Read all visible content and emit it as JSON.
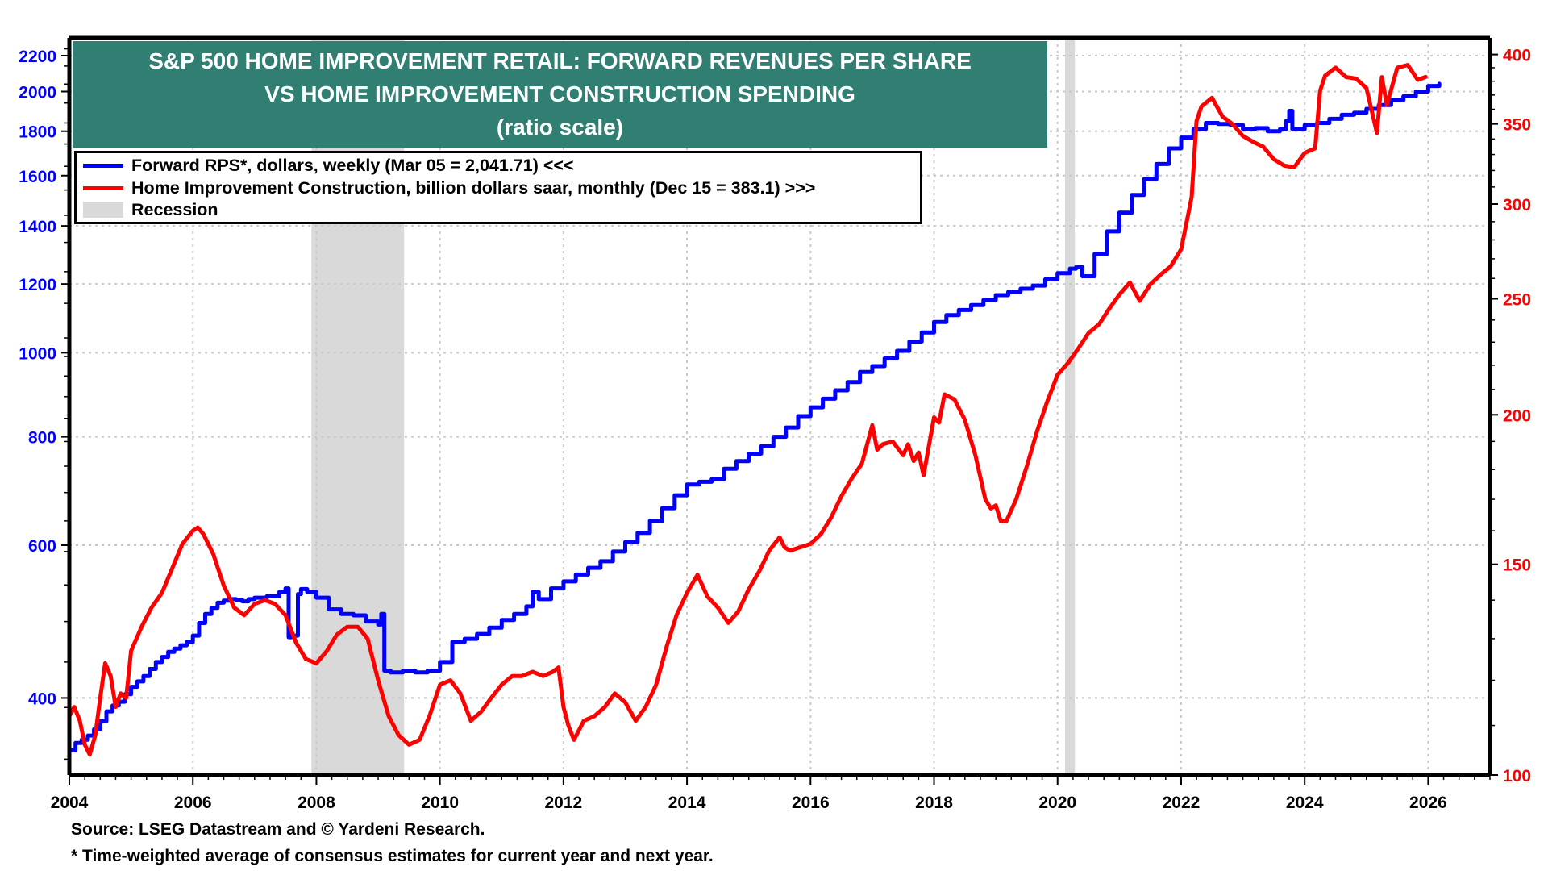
{
  "chart_data": {
    "type": "line",
    "title": [
      "S&P 500 HOME IMPROVEMENT RETAIL: FORWARD REVENUES PER SHARE",
      "VS HOME IMPROVEMENT CONSTRUCTION SPENDING",
      "(ratio scale)"
    ],
    "xlabel": "",
    "x_range": [
      2004,
      2027
    ],
    "x_ticks": [
      2004,
      2006,
      2008,
      2010,
      2012,
      2014,
      2016,
      2018,
      2020,
      2022,
      2024,
      2026
    ],
    "y_left": {
      "label": "",
      "scale": "log",
      "range": [
        326,
        2306
      ],
      "ticks": [
        400,
        600,
        800,
        1000,
        1200,
        1400,
        1600,
        1800,
        2000,
        2200
      ],
      "color": "#0000ff"
    },
    "y_right": {
      "label": "",
      "scale": "log",
      "range": [
        100,
        413
      ],
      "ticks": [
        100,
        150,
        200,
        250,
        300,
        350,
        400
      ],
      "color": "#ff0000"
    },
    "grid": true,
    "legend_placement": "top-left",
    "recessions": [
      [
        2007.92,
        2009.42
      ],
      [
        2020.12,
        2020.28
      ]
    ],
    "series": [
      {
        "name": "Forward RPS*, dollars, weekly (Mar 05 = 2,041.71) <<<",
        "axis": "left",
        "color": "#0000ff",
        "x": [
          2004.0,
          2004.1,
          2004.2,
          2004.3,
          2004.4,
          2004.5,
          2004.6,
          2004.7,
          2004.8,
          2004.9,
          2005.0,
          2005.1,
          2005.2,
          2005.3,
          2005.4,
          2005.5,
          2005.6,
          2005.7,
          2005.8,
          2005.9,
          2006.0,
          2006.1,
          2006.2,
          2006.3,
          2006.4,
          2006.5,
          2006.6,
          2006.7,
          2006.8,
          2006.9,
          2007.0,
          2007.2,
          2007.4,
          2007.5,
          2007.55,
          2007.6,
          2007.7,
          2007.75,
          2007.85,
          2008.0,
          2008.2,
          2008.4,
          2008.6,
          2008.8,
          2009.0,
          2009.05,
          2009.1,
          2009.2,
          2009.4,
          2009.6,
          2009.8,
          2010.0,
          2010.2,
          2010.4,
          2010.6,
          2010.8,
          2011.0,
          2011.2,
          2011.4,
          2011.5,
          2011.6,
          2011.8,
          2012.0,
          2012.2,
          2012.4,
          2012.6,
          2012.8,
          2013.0,
          2013.2,
          2013.4,
          2013.6,
          2013.8,
          2014.0,
          2014.2,
          2014.4,
          2014.6,
          2014.8,
          2015.0,
          2015.2,
          2015.4,
          2015.6,
          2015.8,
          2016.0,
          2016.2,
          2016.4,
          2016.6,
          2016.8,
          2017.0,
          2017.2,
          2017.4,
          2017.6,
          2017.8,
          2018.0,
          2018.2,
          2018.4,
          2018.6,
          2018.8,
          2019.0,
          2019.2,
          2019.4,
          2019.6,
          2019.8,
          2020.0,
          2020.2,
          2020.3,
          2020.4,
          2020.6,
          2020.8,
          2021.0,
          2021.2,
          2021.4,
          2021.6,
          2021.8,
          2022.0,
          2022.2,
          2022.4,
          2022.6,
          2022.8,
          2023.0,
          2023.2,
          2023.4,
          2023.6,
          2023.7,
          2023.75,
          2023.8,
          2024.0,
          2024.2,
          2024.4,
          2024.6,
          2024.8,
          2025.0,
          2025.2,
          2025.4,
          2025.6,
          2025.8,
          2026.0,
          2026.18
        ],
        "values": [
          348,
          355,
          358,
          362,
          368,
          376,
          386,
          392,
          396,
          404,
          412,
          418,
          424,
          432,
          440,
          446,
          452,
          456,
          460,
          464,
          472,
          488,
          500,
          508,
          515,
          518,
          520,
          519,
          517,
          520,
          522,
          524,
          530,
          535,
          470,
          472,
          527,
          534,
          530,
          522,
          506,
          500,
          498,
          490,
          486,
          500,
          430,
          428,
          430,
          428,
          430,
          440,
          464,
          468,
          474,
          482,
          492,
          500,
          510,
          530,
          520,
          535,
          545,
          555,
          565,
          575,
          590,
          605,
          620,
          640,
          662,
          685,
          705,
          710,
          715,
          735,
          750,
          765,
          780,
          800,
          820,
          845,
          865,
          885,
          905,
          925,
          950,
          965,
          985,
          1005,
          1030,
          1055,
          1085,
          1105,
          1120,
          1135,
          1150,
          1165,
          1175,
          1185,
          1195,
          1215,
          1235,
          1250,
          1255,
          1225,
          1300,
          1380,
          1450,
          1520,
          1585,
          1650,
          1720,
          1770,
          1810,
          1840,
          1835,
          1830,
          1810,
          1815,
          1800,
          1810,
          1850,
          1900,
          1810,
          1830,
          1840,
          1860,
          1880,
          1890,
          1910,
          1930,
          1955,
          1975,
          2000,
          2030,
          2041.71
        ]
      },
      {
        "name": "Home Improvement Construction, billion dollars saar, monthly (Dec 15 = 383.1) >>>",
        "axis": "right",
        "color": "#ff0000",
        "x": [
          2004.0,
          2004.08,
          2004.17,
          2004.25,
          2004.33,
          2004.42,
          2004.5,
          2004.58,
          2004.67,
          2004.75,
          2004.83,
          2004.92,
          2005.0,
          2005.17,
          2005.33,
          2005.5,
          2005.67,
          2005.83,
          2006.0,
          2006.08,
          2006.17,
          2006.33,
          2006.5,
          2006.67,
          2006.83,
          2007.0,
          2007.17,
          2007.33,
          2007.5,
          2007.67,
          2007.83,
          2008.0,
          2008.17,
          2008.33,
          2008.5,
          2008.67,
          2008.83,
          2009.0,
          2009.17,
          2009.33,
          2009.5,
          2009.67,
          2009.83,
          2010.0,
          2010.17,
          2010.33,
          2010.5,
          2010.67,
          2010.83,
          2011.0,
          2011.17,
          2011.33,
          2011.5,
          2011.67,
          2011.83,
          2011.92,
          2012.0,
          2012.08,
          2012.17,
          2012.33,
          2012.5,
          2012.67,
          2012.83,
          2013.0,
          2013.17,
          2013.33,
          2013.5,
          2013.67,
          2013.83,
          2014.0,
          2014.17,
          2014.33,
          2014.5,
          2014.67,
          2014.83,
          2015.0,
          2015.17,
          2015.33,
          2015.5,
          2015.58,
          2015.67,
          2015.83,
          2016.0,
          2016.17,
          2016.33,
          2016.5,
          2016.67,
          2016.83,
          2017.0,
          2017.08,
          2017.17,
          2017.33,
          2017.5,
          2017.58,
          2017.67,
          2017.75,
          2017.83,
          2018.0,
          2018.08,
          2018.17,
          2018.33,
          2018.5,
          2018.67,
          2018.83,
          2018.92,
          2019.0,
          2019.08,
          2019.17,
          2019.33,
          2019.5,
          2019.67,
          2019.83,
          2020.0,
          2020.17,
          2020.33,
          2020.5,
          2020.67,
          2020.83,
          2021.0,
          2021.17,
          2021.33,
          2021.5,
          2021.67,
          2021.83,
          2022.0,
          2022.17,
          2022.25,
          2022.33,
          2022.5,
          2022.67,
          2022.83,
          2023.0,
          2023.17,
          2023.33,
          2023.5,
          2023.67,
          2023.83,
          2024.0,
          2024.17,
          2024.25,
          2024.33,
          2024.5,
          2024.67,
          2024.83,
          2025.0,
          2025.17,
          2025.25,
          2025.33,
          2025.5,
          2025.67,
          2025.83,
          2025.96
        ],
        "values": [
          112,
          114,
          111,
          106,
          104,
          108,
          116,
          124,
          121,
          114,
          117,
          116,
          127,
          133,
          138,
          142,
          149,
          156,
          160,
          161,
          159,
          153,
          144,
          138,
          136,
          139,
          140,
          139,
          136,
          129,
          125,
          124,
          127,
          131,
          133,
          133,
          130,
          120,
          112,
          108,
          106,
          107,
          112,
          119,
          120,
          117,
          111,
          113,
          116,
          119,
          121,
          121,
          122,
          121,
          122,
          123,
          114,
          110,
          107,
          111,
          112,
          114,
          117,
          115,
          111,
          114,
          119,
          128,
          136,
          142,
          147,
          141,
          138,
          134,
          137,
          143,
          148,
          154,
          158,
          155,
          154,
          155,
          156,
          159,
          164,
          171,
          177,
          182,
          196,
          187,
          189,
          190,
          185,
          189,
          183,
          186,
          178,
          199,
          197,
          208,
          206,
          198,
          185,
          170,
          167,
          168,
          163,
          163,
          170,
          181,
          194,
          205,
          216,
          221,
          227,
          234,
          238,
          245,
          252,
          258,
          249,
          257,
          262,
          266,
          275,
          304,
          352,
          362,
          368,
          355,
          350,
          342,
          338,
          335,
          327,
          323,
          322,
          331,
          334,
          373,
          384,
          390,
          383,
          382,
          375,
          344,
          383,
          363,
          390,
          392,
          381,
          383.1
        ]
      }
    ],
    "legend": [
      {
        "label": "Forward RPS*, dollars, weekly (Mar 05 = 2,041.71) <<<",
        "color": "#0000ff"
      },
      {
        "label": "Home Improvement Construction, billion dollars saar, monthly (Dec 15 = 383.1) >>>",
        "color": "#ff0000"
      },
      {
        "label": "Recession",
        "color": "#d9d9d9"
      }
    ],
    "annotations": [
      "Source: LSEG Datastream and © Yardeni Research.",
      "* Time-weighted average of consensus estimates for current year and next year."
    ]
  },
  "title": {
    "line1": "S&P 500 HOME IMPROVEMENT RETAIL: FORWARD REVENUES PER SHARE",
    "line2": "VS HOME IMPROVEMENT CONSTRUCTION SPENDING",
    "line3": "(ratio scale)",
    "background_color": "#317f72"
  },
  "legend": {
    "item0": "Forward RPS*, dollars, weekly (Mar 05 = 2,041.71) <<<",
    "item1": "Home Improvement Construction, billion dollars saar, monthly (Dec 15 = 383.1) >>>",
    "item2": "Recession"
  },
  "footer": {
    "source": "Source: LSEG Datastream and © Yardeni Research.",
    "note": "* Time-weighted average of consensus estimates for current year and next year."
  }
}
